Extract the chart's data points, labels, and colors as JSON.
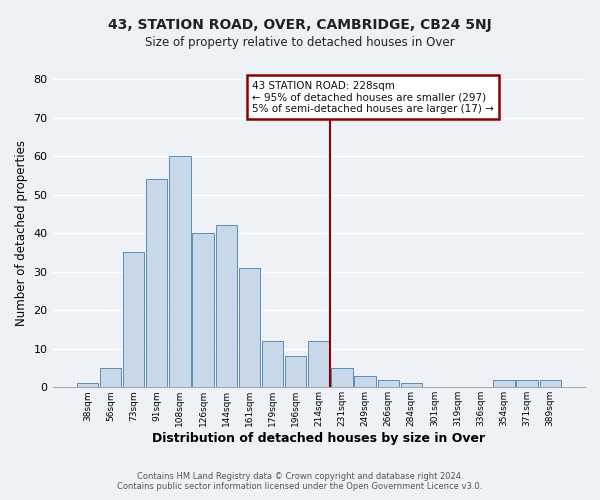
{
  "title1": "43, STATION ROAD, OVER, CAMBRIDGE, CB24 5NJ",
  "title2": "Size of property relative to detached houses in Over",
  "xlabel": "Distribution of detached houses by size in Over",
  "ylabel": "Number of detached properties",
  "categories": [
    "38sqm",
    "56sqm",
    "73sqm",
    "91sqm",
    "108sqm",
    "126sqm",
    "144sqm",
    "161sqm",
    "179sqm",
    "196sqm",
    "214sqm",
    "231sqm",
    "249sqm",
    "266sqm",
    "284sqm",
    "301sqm",
    "319sqm",
    "336sqm",
    "354sqm",
    "371sqm",
    "389sqm"
  ],
  "values": [
    1,
    5,
    35,
    54,
    60,
    40,
    42,
    31,
    12,
    8,
    12,
    5,
    3,
    2,
    1,
    0,
    0,
    0,
    2,
    2,
    2
  ],
  "bar_color": "#c8d8e8",
  "bar_edge_color": "#5b8db8",
  "background_color": "#eef2f7",
  "grid_color": "#ffffff",
  "redline_color": "#8b0000",
  "ylim": [
    0,
    80
  ],
  "yticks": [
    0,
    10,
    20,
    30,
    40,
    50,
    60,
    70,
    80
  ],
  "annotation_title": "43 STATION ROAD: 228sqm",
  "annotation_line1": "← 95% of detached houses are smaller (297)",
  "annotation_line2": "5% of semi-detached houses are larger (17) →",
  "footer1": "Contains HM Land Registry data © Crown copyright and database right 2024.",
  "footer2": "Contains public sector information licensed under the Open Government Licence v3.0."
}
